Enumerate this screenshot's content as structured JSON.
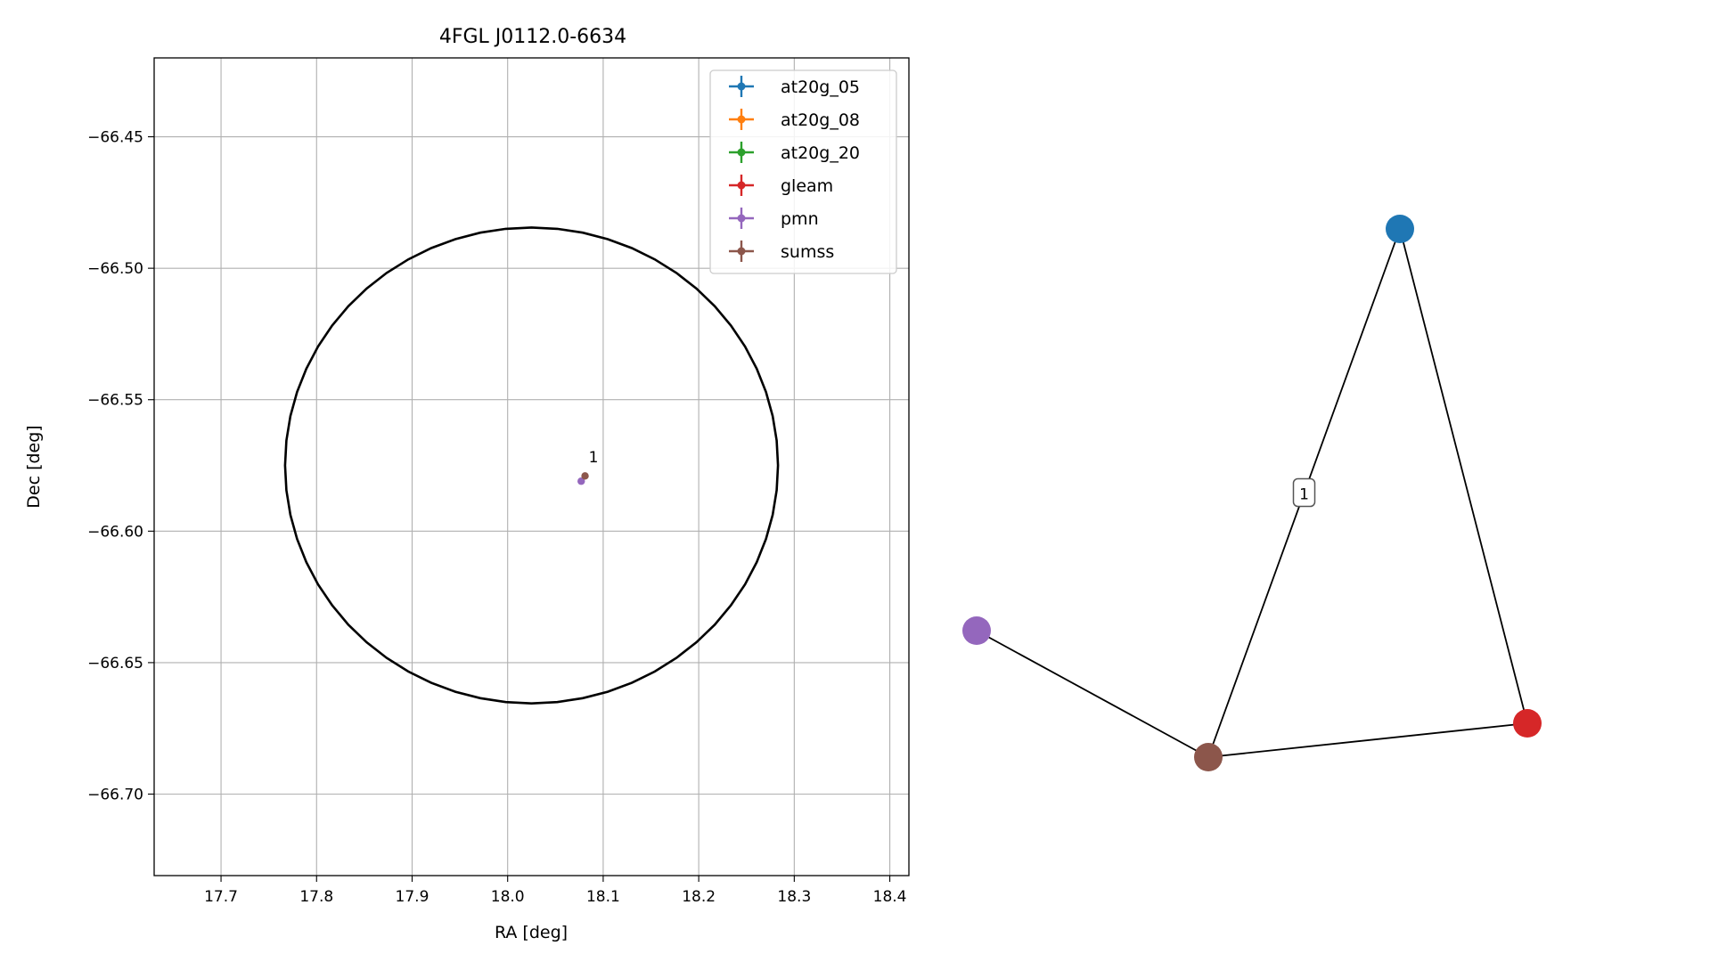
{
  "chart_data": [
    {
      "type": "scatter",
      "title": "4FGL J0112.0-6634",
      "xlabel": "RA [deg]",
      "ylabel": "Dec [deg]",
      "xlim": [
        17.63,
        18.42
      ],
      "ylim": [
        -66.731,
        -66.42
      ],
      "x_ticks": [
        "17.7",
        "17.8",
        "17.9",
        "18.0",
        "18.1",
        "18.2",
        "18.3",
        "18.4"
      ],
      "x_tick_values": [
        17.7,
        17.8,
        17.9,
        18.0,
        18.1,
        18.2,
        18.3,
        18.4
      ],
      "y_ticks": [
        "−66.45",
        "−66.50",
        "−66.55",
        "−66.60",
        "−66.65",
        "−66.70"
      ],
      "y_tick_values": [
        -66.45,
        -66.5,
        -66.55,
        -66.6,
        -66.65,
        -66.7
      ],
      "grid": true,
      "legend_position": "top-right",
      "ellipse": {
        "center_ra": 18.025,
        "center_dec": -66.575,
        "half_width_ra": 0.258,
        "half_height_dec": 0.0905,
        "color": "#000000"
      },
      "series": [
        {
          "name": "at20g_05",
          "color": "#1f77b4",
          "points": []
        },
        {
          "name": "at20g_08",
          "color": "#ff7f0e",
          "points": []
        },
        {
          "name": "at20g_20",
          "color": "#2ca02c",
          "points": []
        },
        {
          "name": "gleam",
          "color": "#d62728",
          "points": []
        },
        {
          "name": "pmn",
          "color": "#9467bd",
          "points": [
            [
              18.077,
              -66.581
            ]
          ]
        },
        {
          "name": "sumss",
          "color": "#8c564b",
          "points": [
            [
              18.081,
              -66.579
            ]
          ]
        }
      ],
      "annotations": [
        {
          "text": "1",
          "ra": 18.083,
          "dec": -66.5745
        }
      ]
    },
    {
      "type": "network",
      "nodes": [
        {
          "name": "at20g_05",
          "color": "#1f77b4"
        },
        {
          "name": "pmn",
          "color": "#9467bd"
        },
        {
          "name": "sumss",
          "color": "#8c564b"
        },
        {
          "name": "gleam",
          "color": "#d62728"
        }
      ],
      "edges": [
        {
          "from": "at20g_05",
          "to": "sumss",
          "label": "1"
        },
        {
          "from": "at20g_05",
          "to": "gleam",
          "label": ""
        },
        {
          "from": "pmn",
          "to": "sumss",
          "label": ""
        },
        {
          "from": "sumss",
          "to": "gleam",
          "label": ""
        }
      ]
    }
  ]
}
